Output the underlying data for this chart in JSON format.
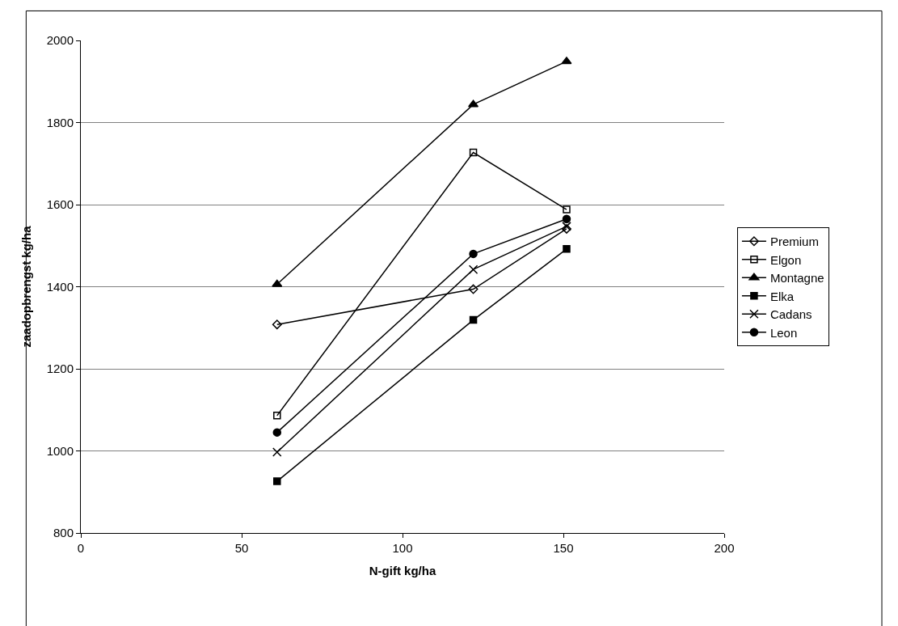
{
  "chart_data": {
    "type": "line",
    "xlabel": "N-gift kg/ha",
    "ylabel": "zaadopbrengst kg/ha",
    "x": [
      61,
      122,
      151
    ],
    "series": [
      {
        "name": "Premium",
        "color": "#000000",
        "marker": "diamond-open",
        "values": [
          1308,
          1394,
          1541
        ]
      },
      {
        "name": "Elgon",
        "color": "#000000",
        "marker": "square-open",
        "values": [
          1086,
          1727,
          1588
        ]
      },
      {
        "name": "Montagne",
        "color": "#000000",
        "marker": "triangle",
        "values": [
          1406,
          1844,
          1949
        ]
      },
      {
        "name": "Elka",
        "color": "#000000",
        "marker": "square",
        "values": [
          926,
          1319,
          1492
        ]
      },
      {
        "name": "Cadans",
        "color": "#000000",
        "marker": "cross",
        "values": [
          997,
          1442,
          1547
        ]
      },
      {
        "name": "Leon",
        "color": "#000000",
        "marker": "circle",
        "values": [
          1045,
          1480,
          1565
        ]
      }
    ],
    "xlim": [
      0,
      200
    ],
    "xticks": [
      0,
      50,
      100,
      150,
      200
    ],
    "ylim": [
      800,
      2000
    ],
    "yticks": [
      800,
      1000,
      1200,
      1400,
      1600,
      1800,
      2000
    ],
    "grid": "y",
    "legend": "right",
    "line_style": "solid"
  }
}
